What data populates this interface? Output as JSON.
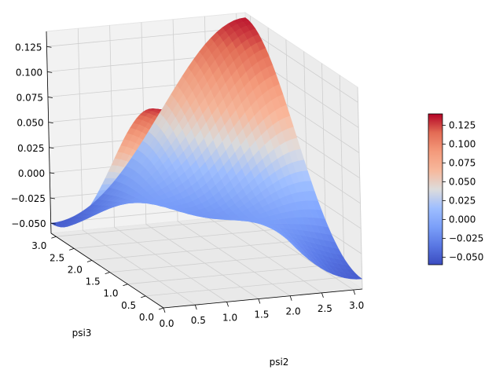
{
  "chart_data": {
    "type": "surface3d",
    "title": "",
    "xlabel": "psi2",
    "ylabel": "psi3",
    "zlabel": "",
    "colormap": "coolwarm",
    "xlim": [
      0.0,
      3.14
    ],
    "ylim": [
      0.0,
      3.14
    ],
    "zlim": [
      -0.06,
      0.14
    ],
    "x_ticks": [
      "0.0",
      "0.5",
      "1.0",
      "1.5",
      "2.0",
      "2.5",
      "3.0"
    ],
    "y_ticks": [
      "0.0",
      "0.5",
      "1.0",
      "1.5",
      "2.0",
      "2.5",
      "3.0"
    ],
    "z_ticks": [
      "−0.050",
      "−0.025",
      "0.000",
      "0.025",
      "0.050",
      "0.075",
      "0.100",
      "0.125"
    ],
    "colorbar_ticks": [
      "−0.050",
      "−0.025",
      "0.000",
      "0.025",
      "0.050",
      "0.075",
      "0.100",
      "0.125"
    ],
    "corner_values": {
      "z_at_x0_y0": 0.135,
      "z_at_xmax_y0": -0.05,
      "z_at_x0_ymax": -0.05,
      "z_at_xmax_ymax": 0.135,
      "z_center": 0.02
    },
    "grid": true,
    "legend": "colorbar-right"
  }
}
